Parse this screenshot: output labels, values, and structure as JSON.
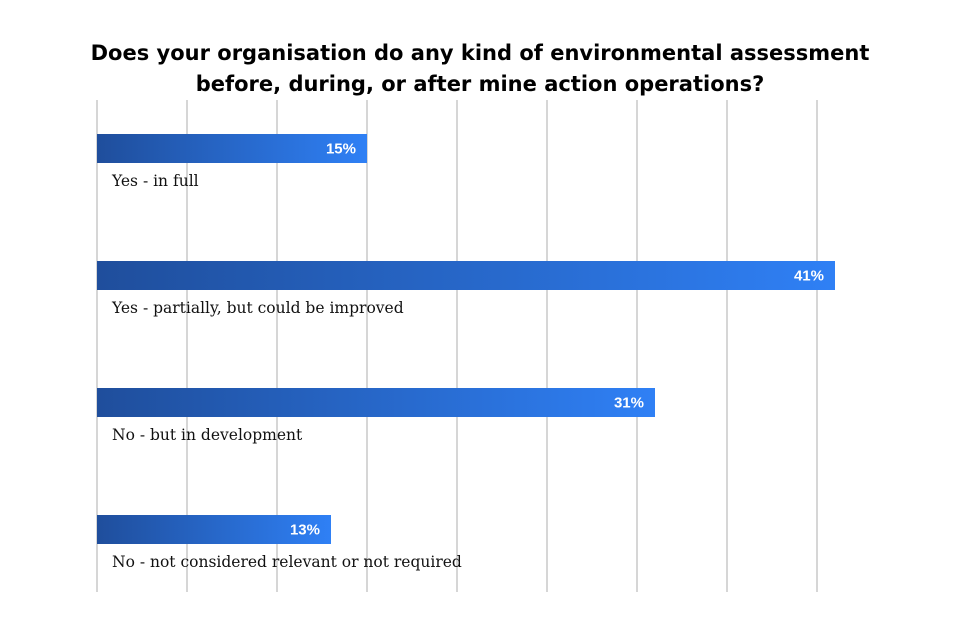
{
  "chart_data": {
    "type": "bar",
    "orientation": "horizontal",
    "title": "Does your organisation do any kind of environmental assessment before, during, or after mine action operations?",
    "title_lines": [
      "Does your organisation do any kind of environmental assessment",
      "before, during, or after mine action operations?"
    ],
    "categories": [
      "Yes - in full",
      "Yes - partially, but could be improved",
      "No - but in development",
      "No - not considered relevant or not required"
    ],
    "values": [
      15,
      41,
      31,
      13
    ],
    "value_labels": [
      "15%",
      "41%",
      "31%",
      "13%"
    ],
    "unit": "%",
    "xlim": [
      0,
      45
    ],
    "gridline_step": 5,
    "grid": true,
    "legend": "none",
    "colors": {
      "bar_start": "#1f4e9c",
      "bar_end": "#2f80f5",
      "gridline": "#c8c8c8"
    }
  }
}
